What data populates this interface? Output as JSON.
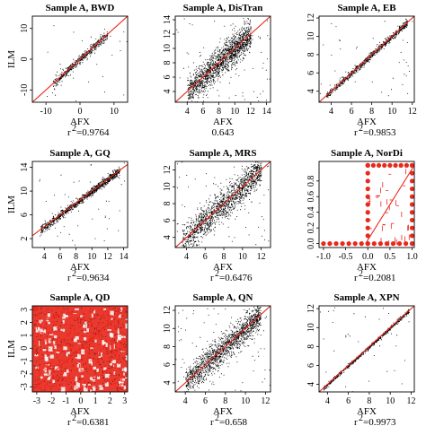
{
  "chart_data": [
    {
      "type": "scatter",
      "title": "Sample A, BWD",
      "xlabel": "AFX",
      "ylabel": "ILM",
      "r2_value": "=0.9764",
      "xlim": [
        -14,
        14
      ],
      "ylim": [
        -14,
        14
      ],
      "xticks": [
        -10,
        0,
        10
      ],
      "yticks": [
        -10,
        0,
        10
      ],
      "pattern": "diag",
      "spread": 0.9,
      "x_range": [
        -8,
        8
      ],
      "density": 500,
      "fit_line": [
        [
          -14,
          -14
        ],
        [
          14,
          14
        ]
      ],
      "show_ylabel": true,
      "show_r2_label": true
    },
    {
      "type": "scatter",
      "title": "Sample A, DisTran",
      "xlabel": "AFX",
      "ylabel": "",
      "r2_value": "0.643",
      "xlim": [
        2.5,
        14.5
      ],
      "ylim": [
        2.5,
        14.5
      ],
      "xticks": [
        4,
        6,
        8,
        10,
        12,
        14
      ],
      "yticks": [
        4,
        6,
        8,
        10,
        12,
        14
      ],
      "pattern": "diag",
      "spread": 1.3,
      "x_range": [
        4,
        12
      ],
      "density": 1600,
      "fit_line": [
        [
          2.5,
          2.5
        ],
        [
          14.5,
          14.5
        ]
      ],
      "show_ylabel": false,
      "show_r2_label": false
    },
    {
      "type": "scatter",
      "title": "Sample A, EB",
      "xlabel": "AFX",
      "ylabel": "",
      "r2_value": "=0.9853",
      "xlim": [
        2.8,
        12.2
      ],
      "ylim": [
        2.8,
        12.2
      ],
      "xticks": [
        4,
        6,
        8,
        10,
        12
      ],
      "yticks": [
        4,
        6,
        8,
        10,
        12
      ],
      "pattern": "diag",
      "spread": 0.22,
      "x_range": [
        3.5,
        11.5
      ],
      "density": 800,
      "fit_line": [
        [
          2.8,
          2.8
        ],
        [
          12.2,
          12.2
        ]
      ],
      "show_ylabel": false,
      "show_r2_label": true
    },
    {
      "type": "scatter",
      "title": "Sample A, GQ",
      "xlabel": "AFX",
      "ylabel": "ILM",
      "r2_value": "=0.9634",
      "xlim": [
        2.5,
        14.5
      ],
      "ylim": [
        0.5,
        15
      ],
      "xticks": [
        4,
        6,
        8,
        10,
        12,
        14
      ],
      "yticks": [
        2,
        6,
        10,
        14
      ],
      "pattern": "diag",
      "spread": 0.4,
      "x_range": [
        3.5,
        13.5
      ],
      "density": 1000,
      "fit_line": [
        [
          2.5,
          2.5
        ],
        [
          14.5,
          14.5
        ]
      ],
      "show_ylabel": true,
      "show_r2_label": true
    },
    {
      "type": "scatter",
      "title": "Sample A, MRS",
      "xlabel": "AFX",
      "ylabel": "",
      "r2_value": "=0.6476",
      "xlim": [
        2.8,
        13
      ],
      "ylim": [
        2.8,
        13
      ],
      "xticks": [
        4,
        6,
        8,
        10,
        12
      ],
      "yticks": [
        4,
        6,
        8,
        10,
        12
      ],
      "pattern": "diag",
      "spread": 1.1,
      "x_range": [
        3.5,
        12
      ],
      "density": 1500,
      "fit_line": [
        [
          2.8,
          2.8
        ],
        [
          13,
          13
        ]
      ],
      "show_ylabel": false,
      "show_r2_label": true
    },
    {
      "type": "scatter",
      "title": "Sample A, NorDi",
      "xlabel": "AFX",
      "ylabel": "",
      "r2_value": "=0.2081",
      "xlim": [
        -1.1,
        1.05
      ],
      "ylim": [
        -0.05,
        1.05
      ],
      "xticks": [
        -1.0,
        -0.5,
        0.0,
        0.5,
        1.0
      ],
      "yticks": [
        0.0,
        0.2,
        0.4,
        0.6,
        0.8
      ],
      "pattern": "nordi",
      "spread": 0,
      "x_range": [
        0,
        1
      ],
      "density": 0,
      "fit_line": [
        [
          -0.05,
          0
        ],
        [
          1.05,
          1
        ]
      ],
      "show_ylabel": false,
      "show_r2_label": true
    },
    {
      "type": "scatter",
      "title": "Sample A, QD",
      "xlabel": "AFX",
      "ylabel": "ILM",
      "r2_value": "=0.6381",
      "xlim": [
        -3.3,
        3.2
      ],
      "ylim": [
        -3.4,
        3.3
      ],
      "xticks": [
        -3,
        -2,
        -1,
        0,
        1,
        2,
        3
      ],
      "yticks": [
        -3,
        -2,
        -1,
        0,
        1,
        2,
        3
      ],
      "pattern": "qd",
      "spread": 0,
      "x_range": [
        -3,
        3
      ],
      "density": 0,
      "fit_line": [
        [
          -3.3,
          -3.3
        ],
        [
          3.2,
          3.2
        ]
      ],
      "show_ylabel": true,
      "show_r2_label": true
    },
    {
      "type": "scatter",
      "title": "Sample A, QN",
      "xlabel": "AFX",
      "ylabel": "",
      "r2_value": "=0.658",
      "xlim": [
        3,
        12.5
      ],
      "ylim": [
        3,
        12.5
      ],
      "xticks": [
        4,
        6,
        8,
        10,
        12
      ],
      "yticks": [
        4,
        6,
        8,
        10,
        12
      ],
      "pattern": "diag",
      "spread": 1.0,
      "x_range": [
        4,
        11.5
      ],
      "density": 1500,
      "fit_line": [
        [
          3,
          3
        ],
        [
          12.5,
          12.5
        ]
      ],
      "show_ylabel": false,
      "show_r2_label": true
    },
    {
      "type": "scatter",
      "title": "Sample A, XPN",
      "xlabel": "AFX",
      "ylabel": "",
      "r2_value": "=0.9973",
      "xlim": [
        3.2,
        12.3
      ],
      "ylim": [
        3.2,
        12.3
      ],
      "xticks": [
        4,
        6,
        8,
        10,
        12
      ],
      "yticks": [
        4,
        6,
        8,
        10,
        12
      ],
      "pattern": "diag",
      "spread": 0.12,
      "x_range": [
        3.6,
        11.8
      ],
      "density": 700,
      "fit_line": [
        [
          3.2,
          3.2
        ],
        [
          12.3,
          12.3
        ]
      ],
      "show_ylabel": false,
      "show_r2_label": true
    }
  ],
  "colors": {
    "points": "#000000",
    "fit_line": "#e8281c",
    "frame": "#000000"
  }
}
